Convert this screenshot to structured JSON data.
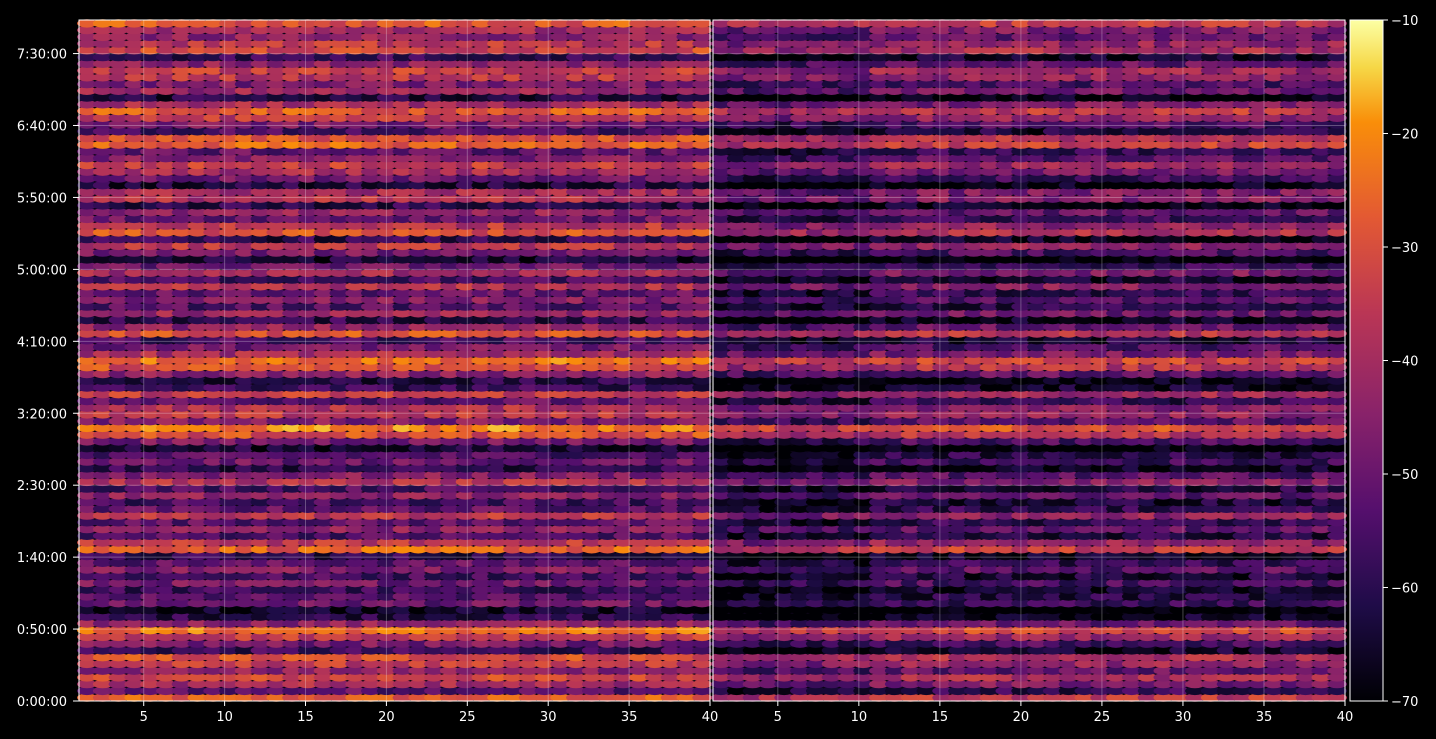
{
  "chart_data": {
    "type": "heatmap",
    "colormap": "inferno",
    "grid": true,
    "background": "#000000",
    "panels": [
      {
        "name": "",
        "x_ticks": [
          5,
          10,
          15,
          20,
          25,
          30,
          35,
          40
        ],
        "x_tick_labels": [
          "5",
          "10",
          "15",
          "20",
          "25",
          "30",
          "35",
          "40"
        ],
        "xlim": [
          1,
          40
        ],
        "brightness_bias": 0.0
      },
      {
        "name": "",
        "x_ticks": [
          5,
          10,
          15,
          20,
          25,
          30,
          35,
          40
        ],
        "x_tick_labels": [
          "5",
          "10",
          "15",
          "20",
          "25",
          "30",
          "35",
          "40"
        ],
        "xlim": [
          1,
          40
        ],
        "brightness_bias": -0.12
      }
    ],
    "y_ticks_seconds": [
      0,
      3000,
      6000,
      9000,
      12000,
      15000,
      18000,
      21000,
      24000,
      27000
    ],
    "y_tick_labels": [
      "0:00:00",
      "0:50:00",
      "1:40:00",
      "2:30:00",
      "3:20:00",
      "4:10:00",
      "5:00:00",
      "5:50:00",
      "6:40:00",
      "7:30:00"
    ],
    "ylim_seconds": [
      0,
      28400
    ],
    "colorbar": {
      "range": [
        -70,
        -10
      ],
      "ticks": [
        -10,
        -20,
        -30,
        -40,
        -50,
        -60,
        -70
      ],
      "tick_labels": [
        "−10",
        "−20",
        "−30",
        "−40",
        "−50",
        "−60",
        "−70"
      ]
    },
    "row_levels": [
      -28,
      -52,
      -40,
      -32,
      -44,
      -35,
      -30,
      -58,
      -48,
      -34,
      -24,
      -44,
      -60,
      -66,
      -50,
      -54,
      -58,
      -48,
      -56,
      -45,
      -52,
      -60,
      -26,
      -36,
      -54,
      -44,
      -52,
      -36,
      -52,
      -56,
      -44,
      -55,
      -38,
      -46,
      -60,
      -50,
      -54,
      -64,
      -48,
      -30,
      -22,
      -46,
      -36,
      -38,
      -52,
      -34,
      -58,
      -62,
      -44,
      -30,
      -24,
      -40,
      -48,
      -56,
      -30,
      -44,
      -60,
      -42,
      -54,
      -46,
      -52,
      -38,
      -56,
      -40,
      -50,
      -64,
      -48,
      -36,
      -60,
      -30,
      -36,
      -50,
      -44,
      -60,
      -38,
      -40,
      -62,
      -50,
      -40,
      -34,
      -46,
      -52,
      -26,
      -30,
      -56,
      -48,
      -36,
      -28,
      -40,
      -62,
      -42,
      -48,
      -36,
      -34,
      -44,
      -58,
      -32,
      -36,
      -44,
      -40,
      -28
    ]
  }
}
